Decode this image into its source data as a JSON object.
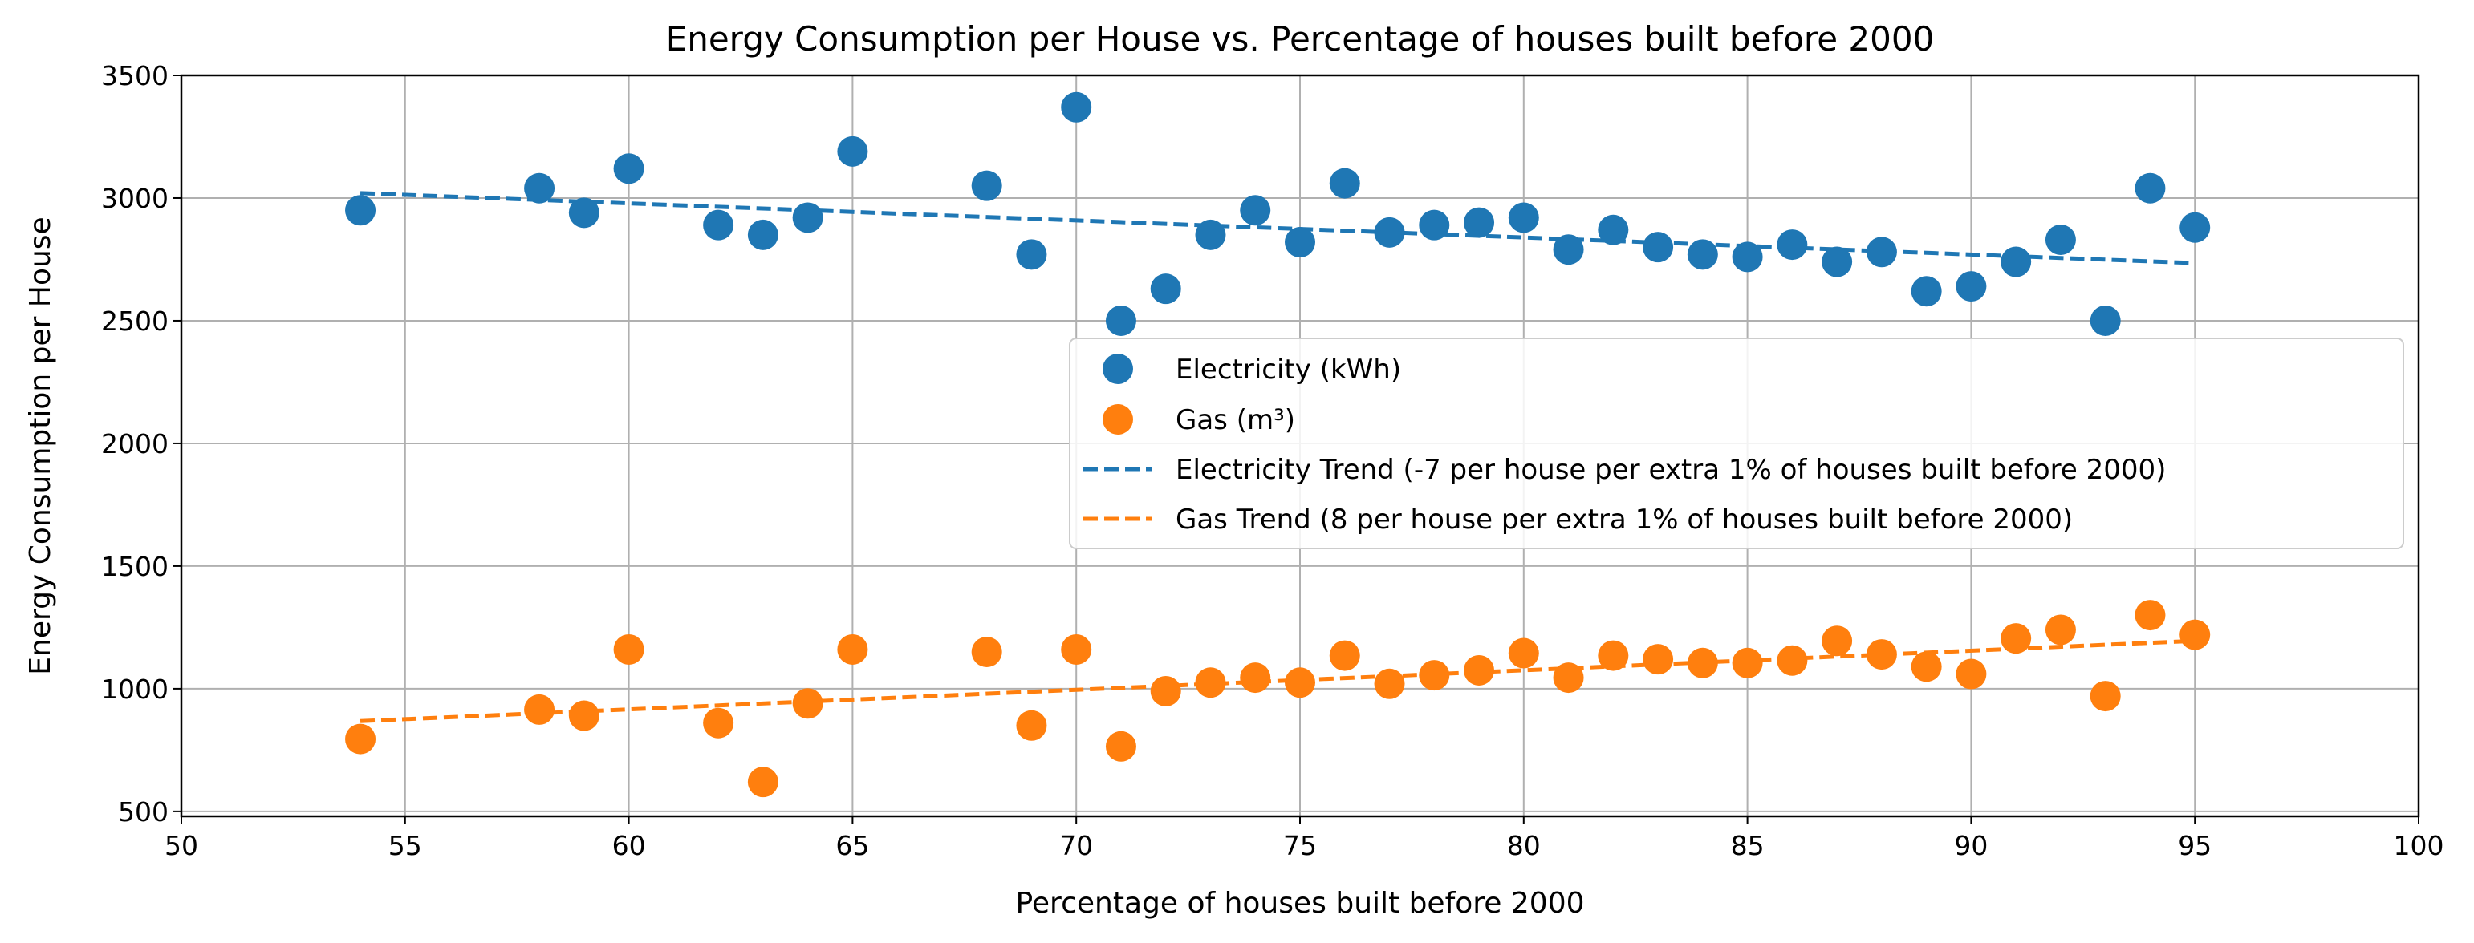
{
  "chart_data": {
    "type": "scatter",
    "title": "Energy Consumption per House vs. Percentage of houses built before 2000",
    "xlabel": "Percentage of houses built before 2000",
    "ylabel": "Energy Consumption per House",
    "xlim": [
      50,
      100
    ],
    "ylim": [
      480,
      3500
    ],
    "xticks": [
      50,
      55,
      60,
      65,
      70,
      75,
      80,
      85,
      90,
      95,
      100
    ],
    "yticks": [
      500,
      1000,
      1500,
      2000,
      2500,
      3000,
      3500
    ],
    "grid": true,
    "legend_position": "center-right",
    "x": [
      54,
      58,
      59,
      60,
      62,
      63,
      64,
      65,
      68,
      69,
      70,
      71,
      72,
      73,
      74,
      75,
      76,
      77,
      78,
      79,
      80,
      81,
      82,
      83,
      84,
      85,
      86,
      87,
      88,
      89,
      90,
      91,
      92,
      93,
      94,
      95
    ],
    "series": [
      {
        "name": "Electricity (kWh)",
        "color": "#1f77b4",
        "values": [
          2950,
          3040,
          2940,
          3120,
          2890,
          2850,
          2920,
          3190,
          3050,
          2770,
          3370,
          2500,
          2630,
          2850,
          2950,
          2820,
          3060,
          2860,
          2890,
          2900,
          2920,
          2790,
          2870,
          2800,
          2770,
          2760,
          2810,
          2740,
          2780,
          2620,
          2640,
          2740,
          2830,
          2500,
          3040,
          2880
        ]
      },
      {
        "name": "Gas (m³)",
        "color": "#ff7f0e",
        "values": [
          795,
          915,
          890,
          1160,
          860,
          620,
          940,
          1160,
          1150,
          850,
          1160,
          765,
          990,
          1025,
          1045,
          1025,
          1135,
          1020,
          1055,
          1075,
          1145,
          1045,
          1135,
          1120,
          1105,
          1105,
          1115,
          1195,
          1140,
          1090,
          1060,
          1205,
          1240,
          970,
          1300,
          1220
        ]
      }
    ],
    "trends": [
      {
        "name": "Electricity Trend (-7 per house per extra 1% of houses built before 2000)",
        "color": "#1f77b4",
        "x": [
          54,
          95
        ],
        "y": [
          3020,
          2735
        ]
      },
      {
        "name": "Gas Trend (8 per house per extra 1% of houses built before 2000)",
        "color": "#ff7f0e",
        "x": [
          54,
          95
        ],
        "y": [
          868,
          1195
        ]
      }
    ]
  }
}
